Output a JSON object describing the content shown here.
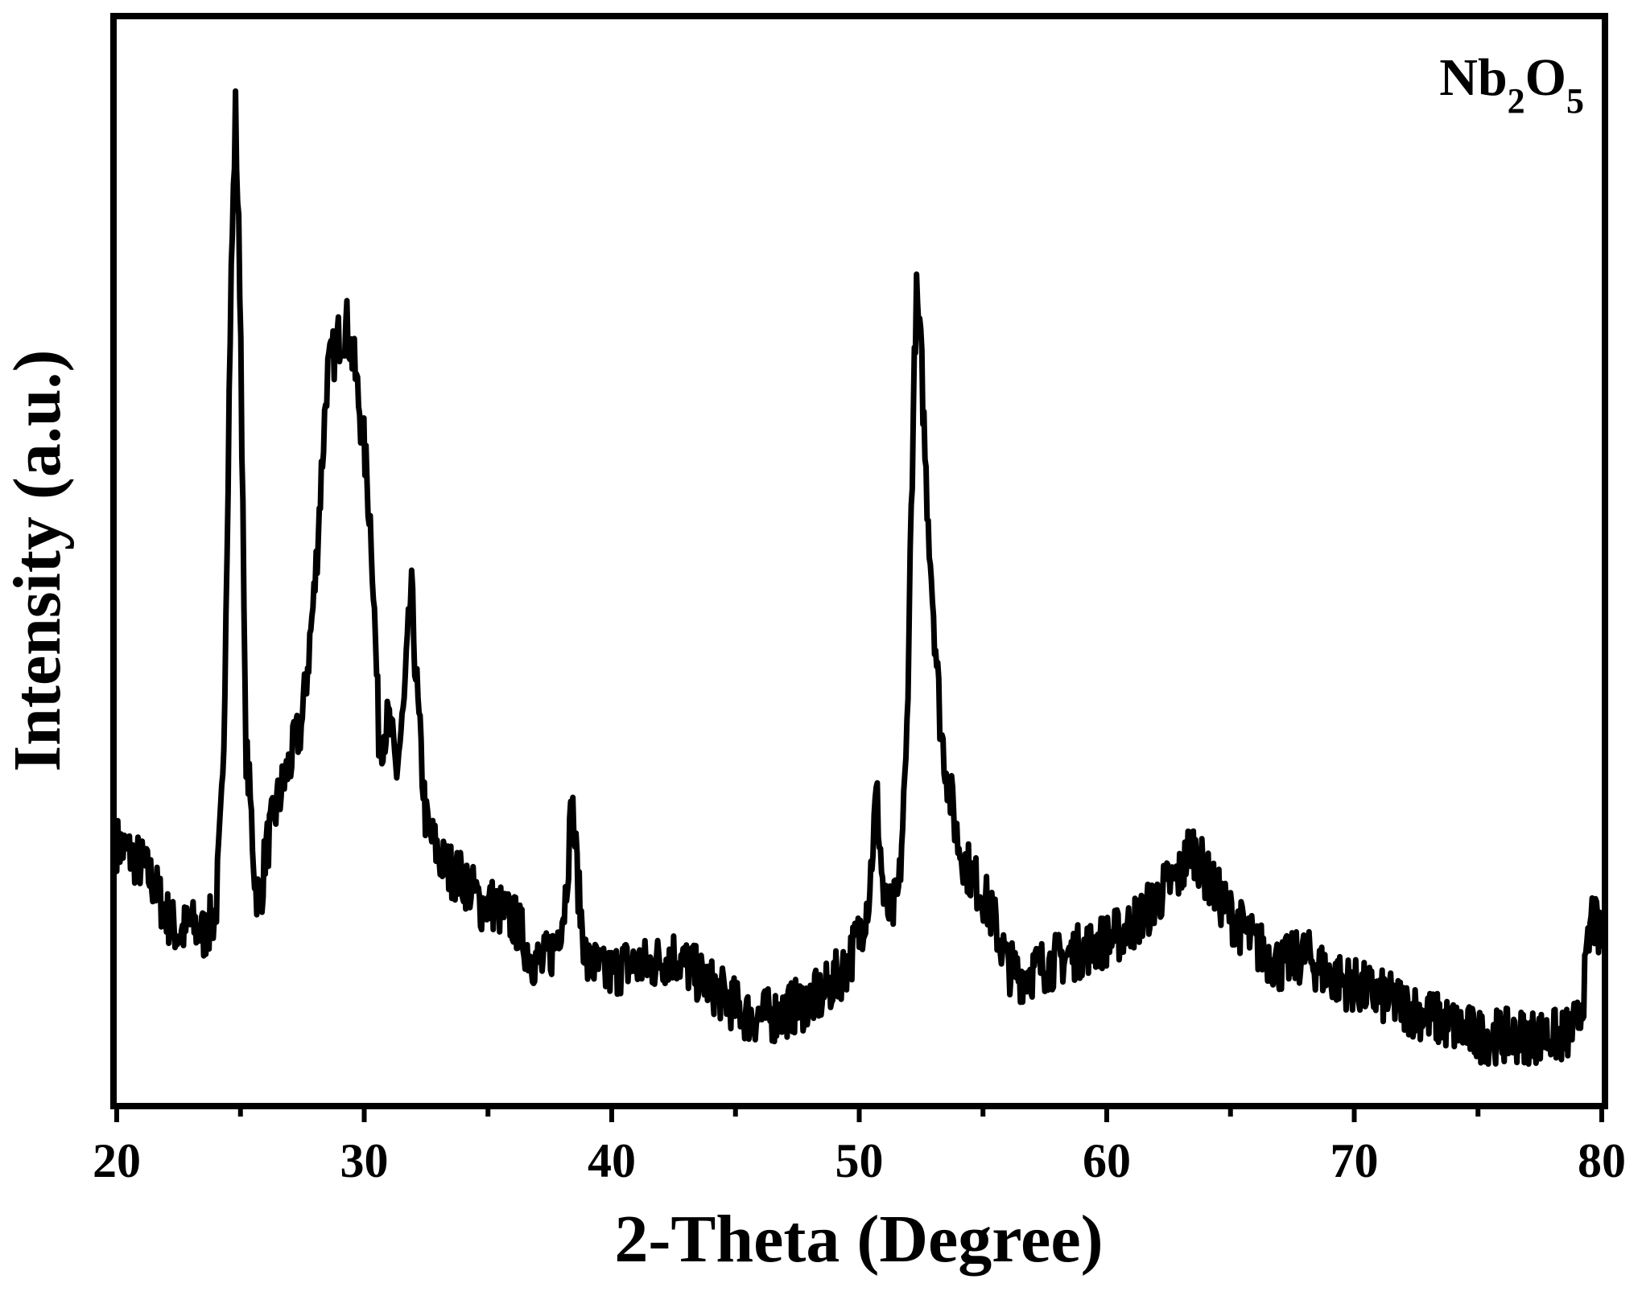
{
  "chart_data": {
    "type": "line",
    "title": "",
    "xlabel": "2-Theta (Degree)",
    "ylabel": "Intensity (a.u.)",
    "xlim": [
      20,
      80
    ],
    "ylim": [
      0,
      100
    ],
    "y_ticks_labeled": false,
    "grid": false,
    "x_major_ticks": [
      20,
      30,
      40,
      50,
      60,
      70,
      80
    ],
    "x_minor_ticks": [
      25,
      35,
      45,
      55,
      65,
      75
    ],
    "x_tick_labels": [
      "20",
      "30",
      "40",
      "50",
      "60",
      "70",
      "80"
    ],
    "annotation": {
      "base": "Nb",
      "sub1": "2",
      "mid": "O",
      "sub2": "5",
      "position": "top-right"
    },
    "series": [
      {
        "name": "",
        "color": "#000000",
        "x": [
          20.0,
          20.5,
          21.0,
          21.5,
          22.0,
          22.5,
          23.0,
          23.5,
          24.0,
          24.3,
          24.6,
          24.8,
          25.0,
          25.2,
          25.4,
          25.6,
          25.8,
          26.0,
          26.5,
          27.0,
          27.5,
          28.0,
          28.5,
          29.0,
          29.3,
          29.6,
          30.0,
          30.3,
          30.6,
          31.0,
          31.3,
          31.6,
          31.9,
          32.2,
          32.5,
          32.8,
          33.2,
          33.7,
          34.2,
          34.7,
          35.2,
          35.7,
          36.2,
          36.7,
          37.2,
          37.7,
          38.1,
          38.4,
          38.7,
          39.0,
          39.3,
          39.7,
          40.5,
          41.5,
          42.5,
          43.5,
          44.5,
          45.5,
          46.5,
          47.5,
          48.5,
          49.5,
          50.0,
          50.4,
          50.7,
          51.0,
          51.3,
          51.6,
          51.9,
          52.1,
          52.3,
          52.5,
          52.7,
          53.0,
          53.3,
          53.6,
          54.0,
          54.5,
          55.0,
          55.5,
          56.0,
          56.5,
          57.5,
          58.5,
          59.5,
          60.5,
          61.5,
          62.5,
          63.0,
          63.4,
          63.8,
          64.2,
          65.0,
          66.0,
          67.0,
          68.0,
          69.0,
          70.0,
          71.0,
          72.0,
          73.0,
          74.0,
          75.0,
          76.0,
          77.0,
          78.0,
          78.5,
          79.0,
          79.3,
          79.6,
          80.0
        ],
        "y": [
          22,
          21,
          20,
          18,
          15,
          13,
          14,
          13,
          15,
          28,
          75,
          94,
          75,
          32,
          26,
          18,
          16,
          21,
          26,
          30,
          34,
          47,
          68,
          72,
          73,
          69,
          61,
          52,
          32,
          34,
          29,
          35,
          47,
          34,
          24,
          22,
          20,
          19,
          18,
          16,
          16,
          15,
          14,
          11,
          10,
          12,
          16,
          26,
          16,
          10,
          10,
          9,
          10,
          10,
          11,
          9,
          7,
          5,
          5,
          6,
          7,
          10,
          13,
          17,
          27,
          16,
          15,
          17,
          30,
          55,
          76,
          70,
          58,
          45,
          33,
          28,
          22,
          19,
          17,
          14,
          10,
          9,
          10,
          11,
          12,
          13,
          15,
          18,
          19,
          22,
          20,
          18,
          15,
          12,
          10,
          11,
          9,
          8,
          7,
          6,
          5,
          4,
          3,
          3,
          3,
          3,
          3,
          4,
          8,
          15,
          12
        ]
      }
    ]
  }
}
